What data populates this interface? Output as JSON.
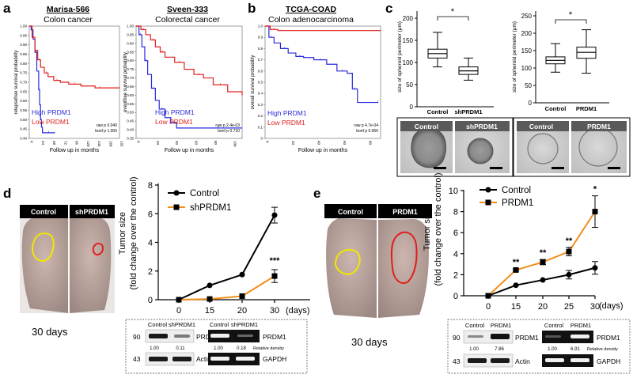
{
  "panels": {
    "a": {
      "letter": "a",
      "left": {
        "study": "Marisa-566",
        "title": "Colon cancer",
        "ylabel": "relapsefree survival probability",
        "xlabel": "Follow up in months",
        "yticks": [
          "1.00",
          "0.95",
          "0.90",
          "0.85",
          "0.80",
          "0.75",
          "0.70",
          "0.65",
          "0.60",
          "0.55",
          "0.50",
          "0.45",
          "0.40"
        ],
        "xticks": [
          "0",
          "24",
          "48",
          "72",
          "96",
          "120",
          "144",
          "168",
          "192"
        ],
        "legend": [
          "High PRDM1",
          "Low PRDM1"
        ],
        "stats": [
          "raw p 0.040",
          "bonf p 1.000"
        ]
      },
      "right": {
        "study": "Sveen-333",
        "title": "Colorectal cancer",
        "ylabel": "eventfree survival probability",
        "xlabel": "Follow up in months",
        "yticks": [
          "1.00",
          "0.95",
          "0.90",
          "0.85",
          "0.80",
          "0.75",
          "0.70",
          "0.65",
          "0.60",
          "0.55",
          "0.50",
          "0.45",
          "0.40",
          "0.35"
        ],
        "xticks": [
          "0",
          "20",
          "40",
          "60",
          "80",
          "100"
        ],
        "legend": [
          "High PRDM1",
          "Low PRDM1"
        ],
        "stats": [
          "raw p 2.4e-03",
          "bonf p 0.720"
        ]
      }
    },
    "b": {
      "letter": "b",
      "study": "TCGA-COAD",
      "title": "Colon adenocarcinoma",
      "ylabel": "overall survival probability",
      "xlabel": "Follow up in months",
      "yticks": [
        "1.0",
        "0.9",
        "0.8",
        "0.7",
        "0.6",
        "0.5",
        "0.4",
        "0.3",
        "0.2",
        "0.1",
        "0"
      ],
      "xticks": [
        "0",
        "20",
        "40",
        "60",
        "80"
      ],
      "legend": [
        "High PRDM1",
        "Low PRDM1"
      ],
      "stats": [
        "raw p 4.7e-04",
        "bonf p 0.066"
      ]
    },
    "c": {
      "letter": "c",
      "ylabel": "size of spheroid perimeter (μm)",
      "left": {
        "yticks": [
          "200",
          "150",
          "100",
          "50",
          "0"
        ],
        "labels": [
          "Control",
          "shPRDM1"
        ],
        "significance": "*",
        "images": [
          "Control",
          "shPRDM1"
        ]
      },
      "right": {
        "yticks": [
          "250",
          "200",
          "150",
          "100",
          "50",
          "0"
        ],
        "labels": [
          "Control",
          "PRDM1"
        ],
        "significance": "*",
        "images": [
          "Control",
          "PRDM1"
        ]
      }
    },
    "d": {
      "letter": "d",
      "photo_labels": [
        "Control",
        "shPRDM1"
      ],
      "days_label": "30 days",
      "ylabel": "Tumor size (fold change over the control)",
      "blot": {
        "headers": [
          "Control",
          "shPRDM1",
          "Control",
          "shPRDM1"
        ],
        "mw": [
          "90",
          "43"
        ],
        "proteins": [
          "PRDM1",
          "Actin"
        ],
        "rna": [
          "PRDM1",
          "GAPDH"
        ],
        "density_protein": [
          "1.00",
          "0.11"
        ],
        "density_rna": [
          "1.00",
          "0.18"
        ],
        "density_label": "Relative density"
      }
    },
    "e": {
      "letter": "e",
      "photo_labels": [
        "Control",
        "PRDM1"
      ],
      "days_label": "30 days",
      "ylabel": "Tumor size (fold change over the control)",
      "blot": {
        "headers": [
          "Control",
          "PRDM1",
          "Control",
          "PRDM1"
        ],
        "mw": [
          "90",
          "43"
        ],
        "proteins": [
          "PRDM1",
          "Actin"
        ],
        "rna": [
          "PRDM1",
          "GAPDH"
        ],
        "density_protein": [
          "1.00",
          "7.86"
        ],
        "density_rna": [
          "1.00",
          "6.91"
        ],
        "density_label": "Relative density"
      }
    }
  },
  "colors": {
    "high": "#2a2ad8",
    "low": "#e0201c",
    "control": "#000000",
    "treated": "#f28e1b"
  },
  "chart_data": [
    {
      "id": "a-left",
      "type": "line",
      "title": "Marisa-566 Colon cancer",
      "xlabel": "Follow up in months",
      "ylabel": "relapsefree survival probability",
      "xlim": [
        0,
        192
      ],
      "ylim": [
        0.4,
        1.0
      ],
      "series": [
        {
          "name": "High PRDM1",
          "x": [
            0,
            4,
            8,
            12,
            16,
            20,
            22,
            24,
            26,
            28,
            55
          ],
          "y": [
            1.0,
            0.98,
            0.93,
            0.86,
            0.76,
            0.66,
            0.58,
            0.5,
            0.46,
            0.43,
            0.43
          ]
        },
        {
          "name": "Low PRDM1",
          "x": [
            0,
            6,
            12,
            18,
            24,
            32,
            40,
            52,
            66,
            84,
            110,
            140,
            160,
            192
          ],
          "y": [
            1.0,
            0.94,
            0.87,
            0.82,
            0.78,
            0.75,
            0.73,
            0.71,
            0.7,
            0.69,
            0.68,
            0.67,
            0.67,
            0.67
          ]
        }
      ],
      "legend": [
        "High PRDM1",
        "Low PRDM1"
      ],
      "annotations": [
        "raw p 0.040",
        "bonf p 1.000"
      ]
    },
    {
      "id": "a-right",
      "type": "line",
      "title": "Sveen-333 Colorectal cancer",
      "xlabel": "Follow up in months",
      "ylabel": "eventfree survival probability",
      "xlim": [
        0,
        110
      ],
      "ylim": [
        0.35,
        1.0
      ],
      "series": [
        {
          "name": "High PRDM1",
          "x": [
            0,
            3,
            6,
            9,
            12,
            16,
            20,
            24,
            30,
            36,
            42,
            60,
            110
          ],
          "y": [
            1.0,
            0.95,
            0.88,
            0.8,
            0.72,
            0.64,
            0.57,
            0.52,
            0.47,
            0.44,
            0.41,
            0.41,
            0.41
          ]
        },
        {
          "name": "Low PRDM1",
          "x": [
            0,
            5,
            10,
            15,
            20,
            25,
            30,
            40,
            50,
            60,
            70,
            80,
            95,
            110
          ],
          "y": [
            1.0,
            0.98,
            0.95,
            0.92,
            0.88,
            0.85,
            0.82,
            0.79,
            0.75,
            0.72,
            0.7,
            0.66,
            0.62,
            0.6
          ]
        }
      ],
      "legend": [
        "High PRDM1",
        "Low PRDM1"
      ],
      "annotations": [
        "raw p 2.4e-03",
        "bonf p 0.720"
      ]
    },
    {
      "id": "b",
      "type": "line",
      "title": "TCGA-COAD Colon adenocarcinoma",
      "xlabel": "Follow up in months",
      "ylabel": "overall survival probability",
      "xlim": [
        0,
        90
      ],
      "ylim": [
        0,
        1.0
      ],
      "series": [
        {
          "name": "High PRDM1",
          "x": [
            0,
            3,
            7,
            12,
            18,
            24,
            30,
            38,
            48,
            56,
            64,
            68,
            72,
            88
          ],
          "y": [
            1.0,
            0.9,
            0.85,
            0.8,
            0.76,
            0.73,
            0.72,
            0.7,
            0.66,
            0.6,
            0.58,
            0.44,
            0.32,
            0.32
          ]
        },
        {
          "name": "Low PRDM1",
          "x": [
            0,
            4,
            10,
            90
          ],
          "y": [
            1.0,
            0.97,
            0.96,
            0.96
          ]
        }
      ],
      "legend": [
        "High PRDM1",
        "Low PRDM1"
      ],
      "annotations": [
        "raw p 4.7e-04",
        "bonf p 0.066"
      ]
    },
    {
      "id": "c-left",
      "type": "box",
      "ylabel": "size of spheroid perimeter (μm)",
      "ylim": [
        0,
        200
      ],
      "categories": [
        "Control",
        "shPRDM1"
      ],
      "boxes": [
        {
          "min": 90,
          "q1": 110,
          "median": 120,
          "q3": 130,
          "max": 168
        },
        {
          "min": 60,
          "q1": 73,
          "median": 81,
          "q3": 90,
          "max": 110
        }
      ],
      "significance": "*"
    },
    {
      "id": "c-right",
      "type": "box",
      "ylabel": "size of spheroid perimeter (μm)",
      "ylim": [
        0,
        250
      ],
      "categories": [
        "Control",
        "PRDM1"
      ],
      "boxes": [
        {
          "min": 88,
          "q1": 112,
          "median": 122,
          "q3": 132,
          "max": 170
        },
        {
          "min": 85,
          "q1": 128,
          "median": 145,
          "q3": 160,
          "max": 210
        }
      ],
      "significance": "*"
    },
    {
      "id": "d",
      "type": "line",
      "xlabel": "(days)",
      "ylabel": "Tumor size (fold change over the control)",
      "categories": [
        "0",
        "15",
        "20",
        "30"
      ],
      "ylim": [
        0,
        8
      ],
      "series": [
        {
          "name": "Control",
          "values": [
            0,
            1.0,
            1.75,
            5.9
          ],
          "errors": [
            0,
            0,
            0,
            0.55
          ]
        },
        {
          "name": "shPRDM1",
          "values": [
            0,
            0.05,
            0.25,
            1.65
          ],
          "errors": [
            0,
            0,
            0,
            0.45
          ]
        }
      ],
      "annotations": [
        {
          "x": "30",
          "text": "***"
        }
      ]
    },
    {
      "id": "e",
      "type": "line",
      "xlabel": "(days)",
      "ylabel": "Tumor size (fold change over the control)",
      "categories": [
        "0",
        "15",
        "20",
        "25",
        "30"
      ],
      "ylim": [
        0,
        10
      ],
      "series": [
        {
          "name": "Control",
          "values": [
            0,
            1.0,
            1.5,
            2.0,
            2.65
          ],
          "errors": [
            0,
            0,
            0,
            0.4,
            0.6
          ]
        },
        {
          "name": "PRDM1",
          "values": [
            0,
            2.45,
            3.2,
            4.2,
            8.0
          ],
          "errors": [
            0,
            0.1,
            0.25,
            0.4,
            1.5
          ]
        }
      ],
      "annotations": [
        {
          "x": "15",
          "text": "**"
        },
        {
          "x": "20",
          "text": "**"
        },
        {
          "x": "25",
          "text": "**"
        },
        {
          "x": "30",
          "text": "*"
        }
      ]
    }
  ]
}
